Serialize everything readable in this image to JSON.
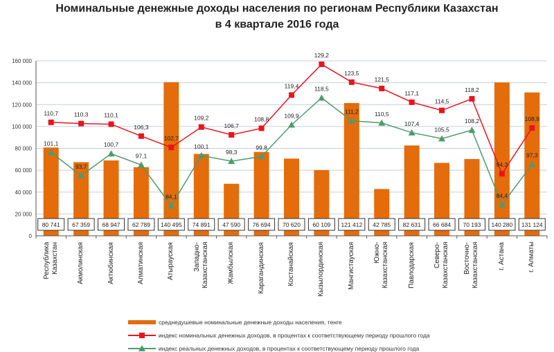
{
  "title_line1": "Номинальные денежные доходы населения по регионам Республики Казахстан",
  "title_line2": "в 4 квартале 2016  года",
  "chart_data": {
    "type": "bar+line",
    "categories": [
      "Республика\nКазахстан",
      "Акмолинская",
      "Актюбинская",
      "Алматинская",
      "Атырауская",
      "Западно-\nКазахстанская",
      "Жамбылская",
      "Карагандинская",
      "Костанайская",
      "Кызылординская",
      "Мангистауская",
      "Южно-\nКазахстанская",
      "Павлодарская",
      "Северо-\nКазахстанская",
      "Восточно-\nКазахстанская",
      "г. Астана",
      "г. Алматы"
    ],
    "bar_labels": [
      "80 741",
      "67 359",
      "68 947",
      "62 789",
      "140 495",
      "74 891",
      "47 590",
      "76 694",
      "70 620",
      "60 109",
      "121 412",
      "42 785",
      "82 631",
      "66 684",
      "70 193",
      "140 280",
      "131 124"
    ],
    "series": [
      {
        "name": "среднедушевые номинальные денежные доходы населения, тенге",
        "type": "bar",
        "color": "#E46C0A",
        "axis": "primary",
        "values": [
          80741,
          67359,
          68947,
          62789,
          140495,
          74891,
          47590,
          76694,
          70620,
          60109,
          121412,
          42785,
          82631,
          66684,
          70193,
          140280,
          131124
        ]
      },
      {
        "name": "индекс номинальных денежных доходов, в процентах к соответствующему периоду прошлого года",
        "type": "line",
        "marker": "square",
        "color": "#E8141E",
        "axis": "secondary",
        "values": [
          110.7,
          110.3,
          110.1,
          106.3,
          102.7,
          109.2,
          106.7,
          108.8,
          119.4,
          129.2,
          123.5,
          121.5,
          117.1,
          114.5,
          118.2,
          94.3,
          108.9
        ],
        "labels": [
          "110,7",
          "110,3",
          "110,1",
          "106,3",
          "102,7",
          "109,2",
          "106,7",
          "108,8",
          "119,4",
          "129,2",
          "123,5",
          "121,5",
          "117,1",
          "114,5",
          "118,2",
          "94,3",
          "108,9"
        ]
      },
      {
        "name": "индекс реальных денежных доходов, в процентах к соответствующему периоду прошлого года",
        "type": "line",
        "marker": "triangle",
        "color": "#4E9A6E",
        "axis": "secondary",
        "values": [
          101.1,
          93.7,
          100.7,
          97.1,
          84.1,
          100.1,
          98.3,
          99.8,
          109.9,
          118.5,
          111.2,
          110.5,
          107.4,
          105.5,
          108.2,
          84.4,
          97.3
        ],
        "labels": [
          "101,1",
          "93,7",
          "100,7",
          "97,1",
          "84,1",
          "100,1",
          "98,3",
          "99,8",
          "109,9",
          "118,5",
          "111,2",
          "110,5",
          "107,4",
          "105,5",
          "108,2",
          "84,4",
          "97,3"
        ]
      }
    ],
    "yticks": [
      "0",
      "20 000",
      "40 000",
      "60 000",
      "80 000",
      "100 000",
      "120 000",
      "140 000",
      "160 000"
    ],
    "ylim": [
      0,
      160000
    ],
    "secondary_ylim": [
      74.5,
      130.3
    ],
    "grid": true,
    "legend": "bottom"
  }
}
